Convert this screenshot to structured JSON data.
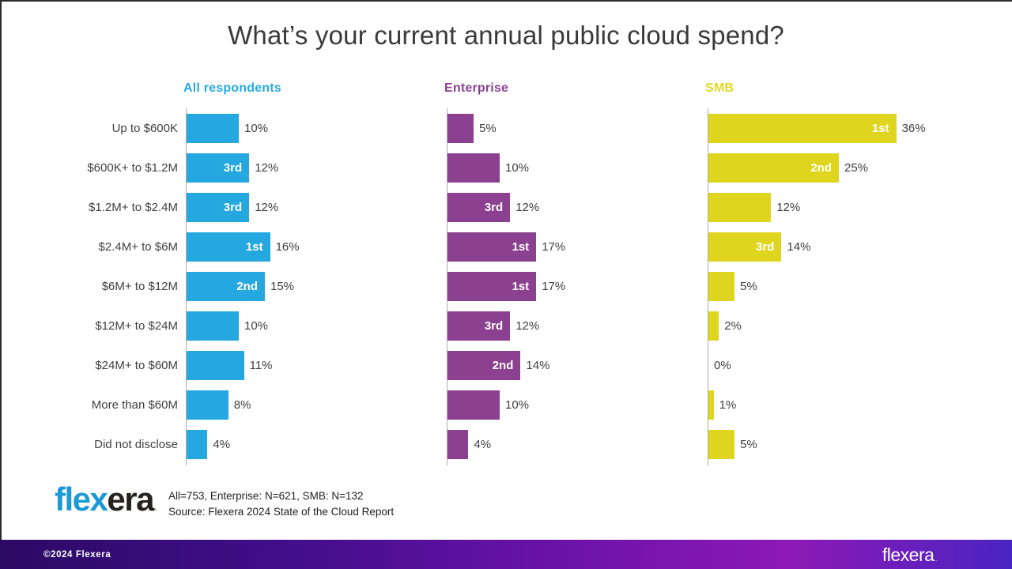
{
  "title": "What’s your current annual public cloud spend?",
  "chart_data": {
    "type": "bar",
    "orientation": "horizontal",
    "title": "What’s your current annual public cloud spend?",
    "xlim": [
      0,
      40
    ],
    "grid": false,
    "legend_position": "column-headers-above-each-panel",
    "value_suffix": "%",
    "categories": [
      "Up to $600K",
      "$600K+ to $1.2M",
      "$1.2M+ to $2.4M",
      "$2.4M+ to $6M",
      "$6M+ to $12M",
      "$12M+ to $24M",
      "$24M+ to $60M",
      "More than $60M",
      "Did not disclose"
    ],
    "series": [
      {
        "name": "All respondents",
        "color": "#25a8e0",
        "header_color": "#29a9e0",
        "values": [
          10,
          12,
          12,
          16,
          15,
          10,
          11,
          8,
          4
        ],
        "ranks": [
          null,
          "3rd",
          "3rd",
          "1st",
          "2nd",
          null,
          null,
          null,
          null
        ]
      },
      {
        "name": "Enterprise",
        "color": "#8b4090",
        "header_color": "#8b4191",
        "values": [
          5,
          10,
          12,
          17,
          17,
          12,
          14,
          10,
          4
        ],
        "ranks": [
          null,
          null,
          "3rd",
          "1st",
          "1st",
          "3rd",
          "2nd",
          null,
          null
        ]
      },
      {
        "name": "SMB",
        "color": "#dfd51f",
        "header_color": "#e2d922",
        "values": [
          36,
          25,
          12,
          14,
          5,
          2,
          0,
          1,
          5
        ],
        "ranks": [
          "1st",
          "2nd",
          null,
          "3rd",
          null,
          null,
          null,
          null,
          null
        ]
      }
    ]
  },
  "footer": {
    "logo": {
      "blue": "fle",
      "x": "x",
      "dark": "era",
      "dot": "."
    },
    "note_line1": "All=753, Enterprise: N=621, SMB: N=132",
    "note_line2": "Source: Flexera 2024 State of the Cloud Report"
  },
  "bottom_bar": {
    "copyright": "©2024 Flexera",
    "brand": "flexera",
    "brand_dot": "."
  },
  "colors": {
    "title_text": "#3a3a3a",
    "category_text": "#414141",
    "value_text": "#3e3e3e",
    "rank_text": "#ffffff",
    "axis_line": "#adadad",
    "all_respondents": "#25a8e0",
    "enterprise": "#8b4090",
    "smb": "#dfd51f",
    "bottom_bar_gradient_start": "#2b0a64",
    "bottom_bar_gradient_mid": "#8d19b5",
    "bottom_bar_gradient_end": "#4a24c2",
    "logo_blue": "#1b9ad6",
    "logo_dark": "#26221f"
  }
}
